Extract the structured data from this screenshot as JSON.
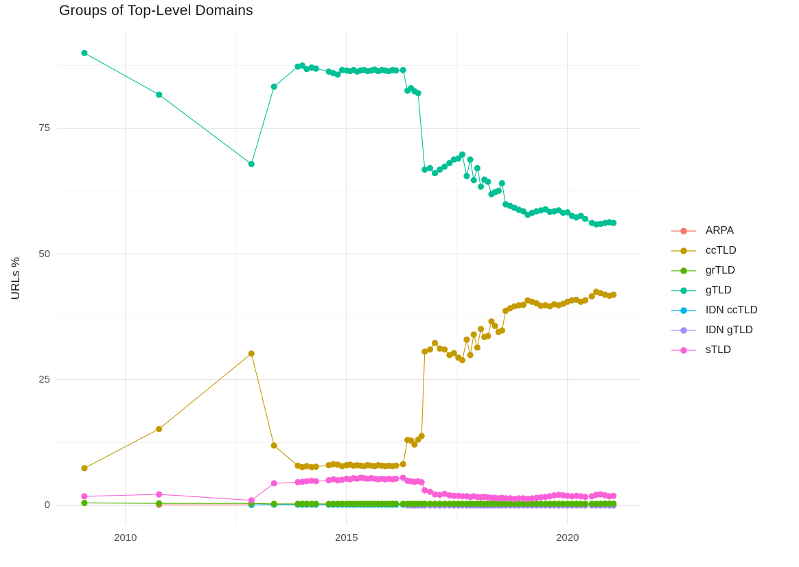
{
  "page": {
    "background": "#ffffff"
  },
  "chart_data": {
    "type": "scatter",
    "title": "Groups of Top-Level Domains",
    "xlabel": "",
    "ylabel": "URLs %",
    "grid": true,
    "legend_position": "right",
    "xlim": [
      2008.45,
      2021.65
    ],
    "ylim": [
      -3.8,
      94.4
    ],
    "x_ticks": [
      {
        "value": 2010,
        "label": "2010"
      },
      {
        "value": 2015,
        "label": "2015"
      },
      {
        "value": 2020,
        "label": "2020"
      }
    ],
    "y_ticks": [
      {
        "value": 0,
        "label": "0"
      },
      {
        "value": 25,
        "label": "25"
      },
      {
        "value": 50,
        "label": "50"
      },
      {
        "value": 75,
        "label": "75"
      }
    ],
    "x_minor": [
      2012.5,
      2017.5
    ],
    "y_minor": [
      12.5,
      37.5,
      62.5,
      87.5
    ],
    "x": [
      2009.07,
      2010.76,
      2012.85,
      2013.36,
      2013.9,
      2014.0,
      2014.1,
      2014.21,
      2014.31,
      2014.6,
      2014.7,
      2014.8,
      2014.9,
      2015.0,
      2015.08,
      2015.16,
      2015.24,
      2015.32,
      2015.4,
      2015.48,
      2015.56,
      2015.64,
      2015.72,
      2015.8,
      2015.88,
      2015.96,
      2016.04,
      2016.12,
      2016.28,
      2016.38,
      2016.46,
      2016.54,
      2016.62,
      2016.7,
      2016.77,
      2016.89,
      2017.0,
      2017.11,
      2017.22,
      2017.33,
      2017.43,
      2017.53,
      2017.62,
      2017.72,
      2017.8,
      2017.88,
      2017.96,
      2018.04,
      2018.12,
      2018.2,
      2018.28,
      2018.36,
      2018.44,
      2018.52,
      2018.6,
      2018.7,
      2018.8,
      2018.9,
      2019.0,
      2019.1,
      2019.2,
      2019.3,
      2019.4,
      2019.5,
      2019.6,
      2019.7,
      2019.8,
      2019.9,
      2020.0,
      2020.1,
      2020.2,
      2020.3,
      2020.4,
      2020.55,
      2020.65,
      2020.75,
      2020.85,
      2020.95,
      2021.04
    ],
    "draw_order": [
      0,
      4,
      5,
      2,
      1,
      3,
      6
    ],
    "series": [
      {
        "name": "ARPA",
        "color": "#F8766D",
        "x": [
          2010.76,
          2012.85
        ],
        "values": [
          0.1,
          0.1
        ]
      },
      {
        "name": "ccTLD",
        "color": "#C49A00",
        "values": [
          7.4,
          15.2,
          30.2,
          11.9,
          7.9,
          7.6,
          7.8,
          7.6,
          7.7,
          8.0,
          8.2,
          8.1,
          7.8,
          8.0,
          8.1,
          7.9,
          8.0,
          7.9,
          7.8,
          8.0,
          7.9,
          7.8,
          8.0,
          7.9,
          7.8,
          7.9,
          7.8,
          7.9,
          8.2,
          13.0,
          12.9,
          12.1,
          13.1,
          13.8,
          30.6,
          31.0,
          32.3,
          31.2,
          31.0,
          29.9,
          30.3,
          29.4,
          28.9,
          33.0,
          29.9,
          34.0,
          31.4,
          35.1,
          33.5,
          33.7,
          36.6,
          35.7,
          34.5,
          34.8,
          38.7,
          39.2,
          39.6,
          39.8,
          39.9,
          40.8,
          40.5,
          40.2,
          39.7,
          39.8,
          39.6,
          40.0,
          39.8,
          40.1,
          40.5,
          40.8,
          40.9,
          40.5,
          40.8,
          41.6,
          42.5,
          42.2,
          41.9,
          41.7,
          41.9
        ]
      },
      {
        "name": "grTLD",
        "color": "#53B400",
        "values": [
          0.5,
          0.4,
          0.4,
          0.3,
          0.3,
          0.3,
          0.3,
          0.3,
          0.3,
          0.3,
          0.3,
          0.3,
          0.3,
          0.3,
          0.3,
          0.3,
          0.3,
          0.3,
          0.3,
          0.3,
          0.3,
          0.3,
          0.3,
          0.3,
          0.3,
          0.3,
          0.3,
          0.3,
          0.3,
          0.3,
          0.3,
          0.3,
          0.3,
          0.3,
          0.3,
          0.3,
          0.3,
          0.3,
          0.3,
          0.3,
          0.3,
          0.3,
          0.3,
          0.3,
          0.3,
          0.3,
          0.3,
          0.3,
          0.3,
          0.3,
          0.3,
          0.3,
          0.3,
          0.3,
          0.3,
          0.3,
          0.3,
          0.3,
          0.3,
          0.3,
          0.3,
          0.3,
          0.3,
          0.3,
          0.3,
          0.3,
          0.3,
          0.3,
          0.3,
          0.3,
          0.3,
          0.3,
          0.3,
          0.3,
          0.3,
          0.3,
          0.35,
          0.35,
          0.35
        ]
      },
      {
        "name": "gTLD",
        "color": "#00C094",
        "values": [
          90.0,
          81.7,
          67.9,
          83.3,
          87.3,
          87.5,
          86.8,
          87.1,
          86.9,
          86.3,
          86.0,
          85.7,
          86.6,
          86.5,
          86.4,
          86.6,
          86.3,
          86.5,
          86.6,
          86.4,
          86.5,
          86.7,
          86.4,
          86.6,
          86.5,
          86.4,
          86.6,
          86.5,
          86.6,
          82.5,
          83.0,
          82.4,
          82.0,
          null,
          66.8,
          67.1,
          66.1,
          66.8,
          67.4,
          68.1,
          68.8,
          69.0,
          69.8,
          65.5,
          68.8,
          64.7,
          67.1,
          63.4,
          64.8,
          64.4,
          61.9,
          62.3,
          62.6,
          64.1,
          59.9,
          59.6,
          59.2,
          58.8,
          58.5,
          57.8,
          58.2,
          58.5,
          58.7,
          58.9,
          58.4,
          58.5,
          58.7,
          58.2,
          58.3,
          57.6,
          57.3,
          57.6,
          57.0,
          56.2,
          55.9,
          56.0,
          56.2,
          56.3,
          56.2
        ]
      },
      {
        "name": "IDN ccTLD",
        "color": "#00B6EB",
        "values": [
          null,
          null,
          0.1,
          0.15,
          0.15,
          0.15,
          0.15,
          0.15,
          0.15,
          0.15,
          0.15,
          0.15,
          0.15,
          0.15,
          0.15,
          0.15,
          0.15,
          0.15,
          0.15,
          0.15,
          0.15,
          0.15,
          0.15,
          0.15,
          0.15,
          0.15,
          0.15,
          0.15,
          0.15,
          0.15,
          0.15,
          0.15,
          0.15,
          0.15,
          0.1,
          0.1,
          0.1,
          0.1,
          0.1,
          0.1,
          0.1,
          0.1,
          0.1,
          0.1,
          0.1,
          0.1,
          0.1,
          0.1,
          0.1,
          0.1,
          0.1,
          0.1,
          0.1,
          0.1,
          0.1,
          0.1,
          0.1,
          0.1,
          0.1,
          0.1,
          0.1,
          0.1,
          0.1,
          0.1,
          0.1,
          0.1,
          0.1,
          0.1,
          0.1,
          0.1,
          0.1,
          0.1,
          0.1,
          0.1,
          0.1,
          0.1,
          0.1,
          0.1,
          0.1
        ]
      },
      {
        "name": "IDN gTLD",
        "color": "#A58AFF",
        "values": [
          null,
          null,
          null,
          null,
          null,
          null,
          null,
          null,
          null,
          null,
          null,
          null,
          null,
          null,
          null,
          null,
          null,
          null,
          null,
          null,
          null,
          null,
          null,
          null,
          null,
          null,
          null,
          null,
          null,
          0.0,
          0.0,
          0.0,
          0.0,
          0.0,
          0.0,
          0.0,
          0.0,
          0.0,
          0.0,
          0.0,
          0.0,
          0.0,
          0.0,
          0.0,
          0.0,
          0.0,
          0.0,
          0.0,
          0.0,
          0.0,
          0.0,
          0.0,
          0.0,
          0.0,
          0.0,
          0.0,
          0.0,
          0.0,
          0.0,
          0.0,
          0.0,
          0.0,
          0.0,
          0.0,
          0.0,
          0.0,
          0.0,
          0.0,
          0.0,
          0.0,
          0.0,
          0.0,
          0.0,
          0.0,
          0.0,
          0.0,
          0.0,
          0.0,
          0.0
        ]
      },
      {
        "name": "sTLD",
        "color": "#FB61D7",
        "values": [
          1.8,
          2.2,
          1.0,
          4.4,
          4.6,
          4.7,
          4.8,
          4.9,
          4.8,
          5.0,
          5.2,
          5.0,
          5.1,
          5.3,
          5.2,
          5.4,
          5.3,
          5.5,
          5.4,
          5.3,
          5.4,
          5.3,
          5.2,
          5.3,
          5.2,
          5.3,
          5.2,
          5.3,
          5.5,
          4.9,
          4.8,
          4.7,
          4.8,
          4.6,
          3.0,
          2.7,
          2.2,
          2.1,
          2.3,
          2.0,
          1.9,
          1.9,
          1.8,
          1.8,
          1.7,
          1.8,
          1.7,
          1.6,
          1.7,
          1.6,
          1.5,
          1.5,
          1.4,
          1.5,
          1.4,
          1.4,
          1.3,
          1.4,
          1.4,
          1.3,
          1.4,
          1.5,
          1.6,
          1.7,
          1.8,
          2.0,
          2.1,
          2.0,
          1.9,
          1.8,
          1.9,
          1.8,
          1.7,
          1.8,
          2.1,
          2.2,
          2.0,
          1.8,
          1.9
        ]
      }
    ],
    "style": {
      "grid_major_color": "#e4e4e4",
      "grid_minor_color": "#f1f1f1",
      "axis_text_color": "#4d4d4d",
      "title_color": "#1a1a1a",
      "point_radius": 4.6,
      "line_width": 1.1
    }
  }
}
